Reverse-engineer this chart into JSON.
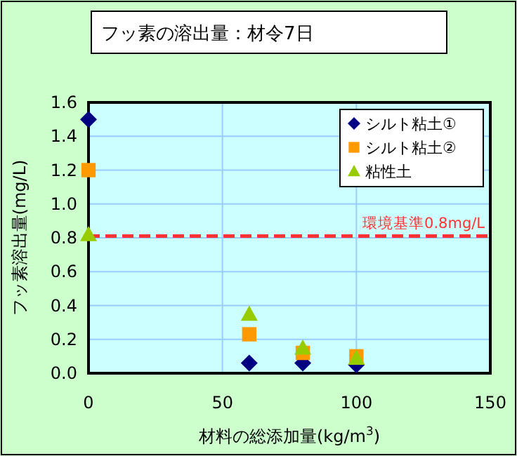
{
  "chart_data": {
    "type": "scatter",
    "title": "フッ素の溶出量：材令7日",
    "xlabel": "材料の総添加量(kg/m$^{3}$)",
    "ylabel": "フッ素溶出量(mg/L)",
    "xlim": [
      0,
      150
    ],
    "xticks": [
      0,
      50,
      100,
      150
    ],
    "ylim": [
      0,
      1.6
    ],
    "yticks": [
      {
        "value": 0,
        "label": "0.0"
      },
      {
        "value": 0.2,
        "label": "0.2"
      },
      {
        "value": 0.4,
        "label": "0.4"
      },
      {
        "value": 0.6,
        "label": "0.6"
      },
      {
        "value": 0.8,
        "label": "0.8"
      },
      {
        "value": 1,
        "label": "1.0"
      },
      {
        "value": 1.2,
        "label": "1.2"
      },
      {
        "value": 1.4,
        "label": "1.4"
      },
      {
        "value": 1.6,
        "label": "1.6"
      }
    ],
    "grid": true,
    "legend": "top right",
    "ref_lines": [
      {
        "axis": "y",
        "value": 0.81,
        "label": "環境基準0.8mg/L",
        "color": "#ff3333",
        "line_style": "dashed"
      }
    ],
    "x": [
      0,
      60,
      80,
      100
    ],
    "series": [
      {
        "name": "シルト粘土①",
        "color": "#000080",
        "marker": "diamond",
        "values": [
          1.5,
          0.06,
          0.06,
          0.05
        ]
      },
      {
        "name": "シルト粘土②",
        "color": "#ff9900",
        "marker": "square",
        "values": [
          1.2,
          0.23,
          0.12,
          0.1
        ]
      },
      {
        "name": "粘性土",
        "color": "#99cc00",
        "marker": "triangle",
        "values": [
          0.82,
          0.35,
          0.15,
          0.09
        ]
      }
    ]
  }
}
